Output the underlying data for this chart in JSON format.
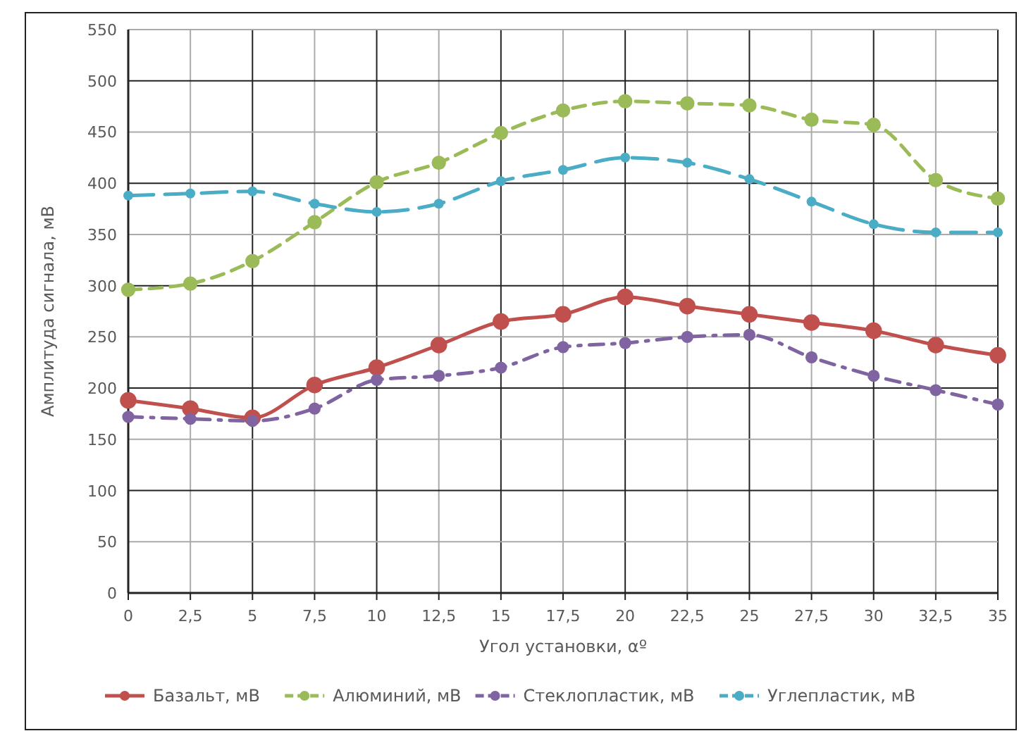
{
  "chart_data": {
    "type": "line",
    "xlabel": "Угол установки, αº",
    "ylabel": "Амплитуда сигнала, мВ",
    "x": [
      0,
      2.5,
      5,
      7.5,
      10,
      12.5,
      15,
      17.5,
      20,
      22.5,
      25,
      27.5,
      30,
      32.5,
      35
    ],
    "xlim": [
      0,
      35
    ],
    "xticks": [
      0,
      {
        "value": 2.5,
        "label": "2,5"
      },
      5,
      {
        "value": 7.5,
        "label": "7,5"
      },
      10,
      {
        "value": 12.5,
        "label": "12,5"
      },
      15,
      {
        "value": 17.5,
        "label": "17,5"
      },
      20,
      {
        "value": 22.5,
        "label": "22,5"
      },
      25,
      {
        "value": 27.5,
        "label": "27,5"
      },
      30,
      {
        "value": 32.5,
        "label": "32,5"
      },
      35
    ],
    "ylim": [
      0,
      550
    ],
    "yticks": [
      0,
      50,
      100,
      150,
      200,
      250,
      300,
      350,
      400,
      450,
      500,
      550
    ],
    "grid": true,
    "legend": "bottom",
    "marker": "circle",
    "series": [
      {
        "name": "Базальт, мВ",
        "color": "#c0504d",
        "line_style": "solid",
        "values": [
          188,
          180,
          171,
          203,
          220,
          242,
          265,
          272,
          289,
          280,
          272,
          264,
          256,
          242,
          232
        ]
      },
      {
        "name": "Алюминий, мВ",
        "color": "#9bbb59",
        "line_style": "dashed",
        "values": [
          296,
          302,
          324,
          362,
          401,
          420,
          449,
          471,
          480,
          478,
          476,
          462,
          457,
          403,
          385
        ]
      },
      {
        "name": "Стеклопластик, мВ",
        "color": "#8064a2",
        "line_style": "dashdot",
        "values": [
          172,
          170,
          168,
          180,
          208,
          212,
          220,
          240,
          244,
          250,
          252,
          230,
          212,
          198,
          184
        ]
      },
      {
        "name": "Углепластик, мВ",
        "color": "#4bacc6",
        "line_style": "longdash",
        "values": [
          388,
          390,
          392,
          380,
          372,
          380,
          402,
          413,
          425,
          420,
          404,
          382,
          360,
          352,
          352
        ]
      }
    ]
  }
}
